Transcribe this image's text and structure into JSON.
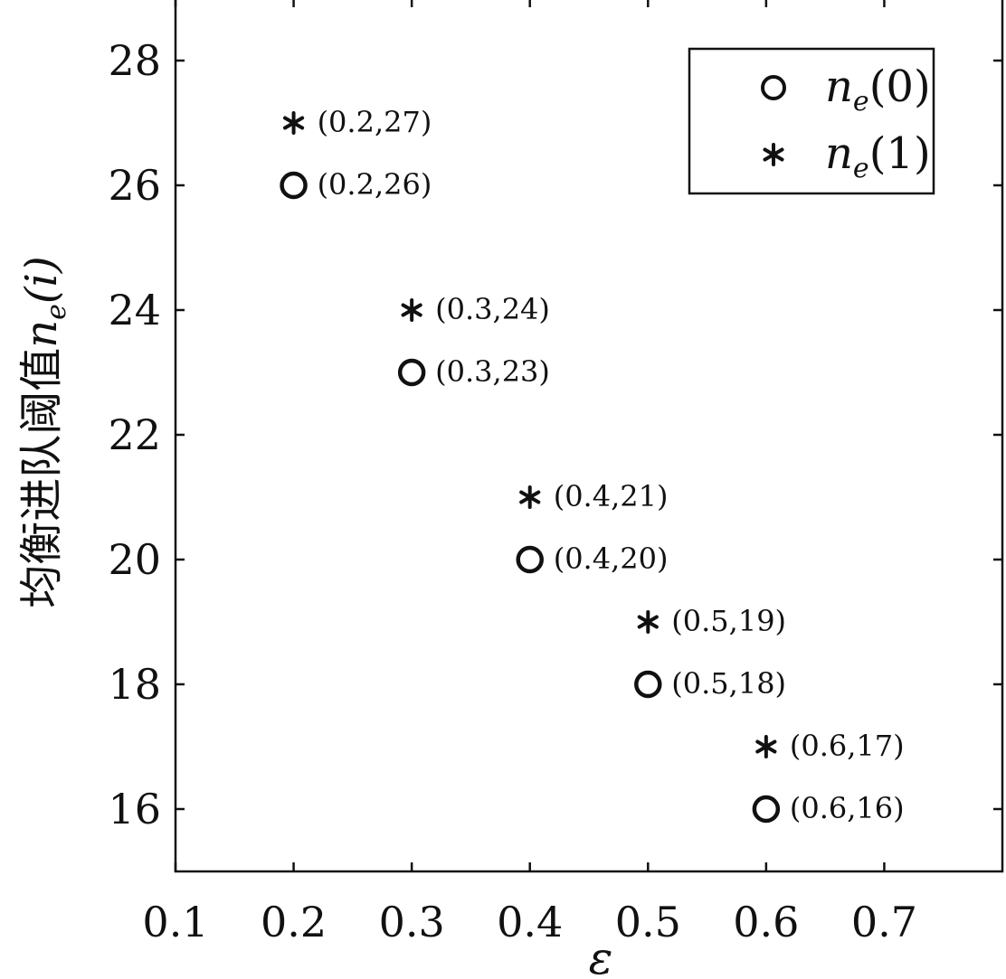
{
  "chart_data": {
    "type": "scatter",
    "xlabel": "ε",
    "ylabel": "均衡进队阈值",
    "ylabel_math": {
      "base": "n",
      "sub": "e",
      "arg": "(i)"
    },
    "xlim": [
      0.1,
      0.8
    ],
    "ylim": [
      15,
      29
    ],
    "xticks": [
      "0.1",
      "0.2",
      "0.3",
      "0.4",
      "0.5",
      "0.6",
      "0.7"
    ],
    "yticks": [
      "16",
      "18",
      "20",
      "22",
      "24",
      "26",
      "28"
    ],
    "grid": false,
    "legend_position": "top-right",
    "series": [
      {
        "name": "n_e(0)",
        "legend_base": "n",
        "legend_sub": "e",
        "legend_arg": "(0)",
        "marker": "circle",
        "points": [
          {
            "x": 0.2,
            "y": 26,
            "label": "(0.2,26)"
          },
          {
            "x": 0.3,
            "y": 23,
            "label": "(0.3,23)"
          },
          {
            "x": 0.4,
            "y": 20,
            "label": "(0.4,20)"
          },
          {
            "x": 0.5,
            "y": 18,
            "label": "(0.5,18)"
          },
          {
            "x": 0.6,
            "y": 16,
            "label": "(0.6,16)"
          }
        ]
      },
      {
        "name": "n_e(1)",
        "legend_base": "n",
        "legend_sub": "e",
        "legend_arg": "(1)",
        "marker": "asterisk",
        "points": [
          {
            "x": 0.2,
            "y": 27,
            "label": "(0.2,27)"
          },
          {
            "x": 0.3,
            "y": 24,
            "label": "(0.3,24)"
          },
          {
            "x": 0.4,
            "y": 21,
            "label": "(0.4,21)"
          },
          {
            "x": 0.5,
            "y": 19,
            "label": "(0.5,19)"
          },
          {
            "x": 0.6,
            "y": 17,
            "label": "(0.6,17)"
          }
        ]
      }
    ]
  }
}
